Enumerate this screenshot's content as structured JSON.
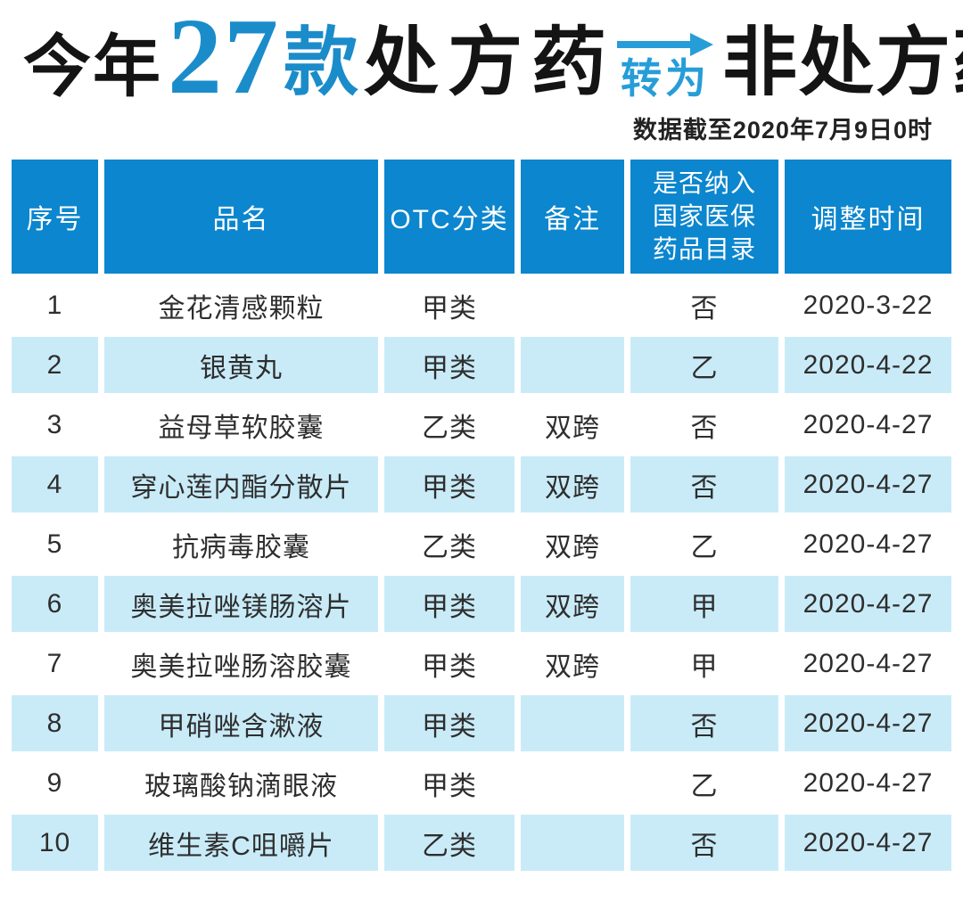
{
  "title": {
    "prefix": "今年",
    "count": "27",
    "unit": "款",
    "from": "处方药",
    "arrow_label": "转为",
    "to": "非处方药",
    "subtitle": "数据截至2020年7月9日0时"
  },
  "colors": {
    "header_bg": "#0c86ce",
    "row_alt_bg": "#c9ebf8",
    "accent_blue": "#1b8cca",
    "arrow_blue": "#279dd8"
  },
  "table": {
    "columns": [
      "序号",
      "品名",
      "OTC分类",
      "备注",
      "是否纳入\n国家医保\n药品目录",
      "调整时间"
    ],
    "rows": [
      [
        "1",
        "金花清感颗粒",
        "甲类",
        "",
        "否",
        "2020-3-22"
      ],
      [
        "2",
        "银黄丸",
        "甲类",
        "",
        "乙",
        "2020-4-22"
      ],
      [
        "3",
        "益母草软胶囊",
        "乙类",
        "双跨",
        "否",
        "2020-4-27"
      ],
      [
        "4",
        "穿心莲内酯分散片",
        "甲类",
        "双跨",
        "否",
        "2020-4-27"
      ],
      [
        "5",
        "抗病毒胶囊",
        "乙类",
        "双跨",
        "乙",
        "2020-4-27"
      ],
      [
        "6",
        "奥美拉唑镁肠溶片",
        "甲类",
        "双跨",
        "甲",
        "2020-4-27"
      ],
      [
        "7",
        "奥美拉唑肠溶胶囊",
        "甲类",
        "双跨",
        "甲",
        "2020-4-27"
      ],
      [
        "8",
        "甲硝唑含漱液",
        "甲类",
        "",
        "否",
        "2020-4-27"
      ],
      [
        "9",
        "玻璃酸钠滴眼液",
        "甲类",
        "",
        "乙",
        "2020-4-27"
      ],
      [
        "10",
        "维生素C咀嚼片",
        "乙类",
        "",
        "否",
        "2020-4-27"
      ]
    ]
  }
}
